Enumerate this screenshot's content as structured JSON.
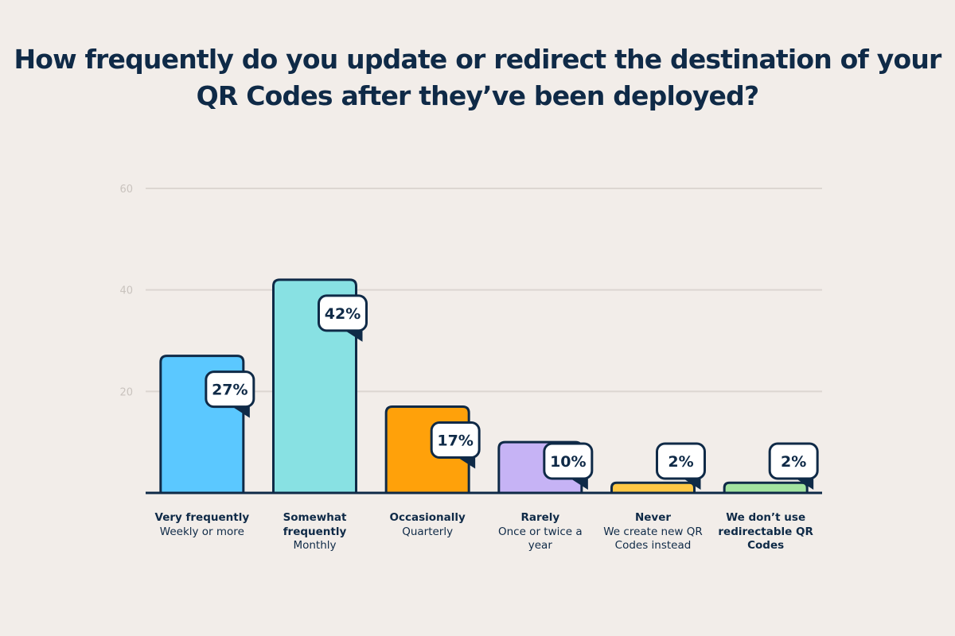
{
  "chart_data": {
    "type": "bar",
    "title": "How frequently do you update or redirect the destination of your QR Codes after they’ve been deployed?",
    "categories": [
      {
        "label": "Very frequently",
        "sublabel": "Weekly or more"
      },
      {
        "label": "Somewhat frequently",
        "sublabel": "Monthly"
      },
      {
        "label": "Occasionally",
        "sublabel": "Quarterly"
      },
      {
        "label": "Rarely",
        "sublabel": "Once or twice a year"
      },
      {
        "label": "Never",
        "sublabel": "We create new QR Codes instead"
      },
      {
        "label": "We don’t use redirectable QR Codes",
        "sublabel": ""
      }
    ],
    "values": [
      27,
      42,
      17,
      10,
      2,
      2
    ],
    "data_labels": [
      "27%",
      "42%",
      "17%",
      "10%",
      "2%",
      "2%"
    ],
    "colors": [
      "#5BC8FF",
      "#88E1E3",
      "#FFA10A",
      "#C6B3F5",
      "#FFC845",
      "#A3E3A0"
    ],
    "ylim": [
      0,
      60
    ],
    "yticks": [
      20,
      40,
      60
    ],
    "ytick_labels": [
      "20",
      "40",
      "60"
    ],
    "grid": true,
    "xlabel": "",
    "ylabel": ""
  }
}
